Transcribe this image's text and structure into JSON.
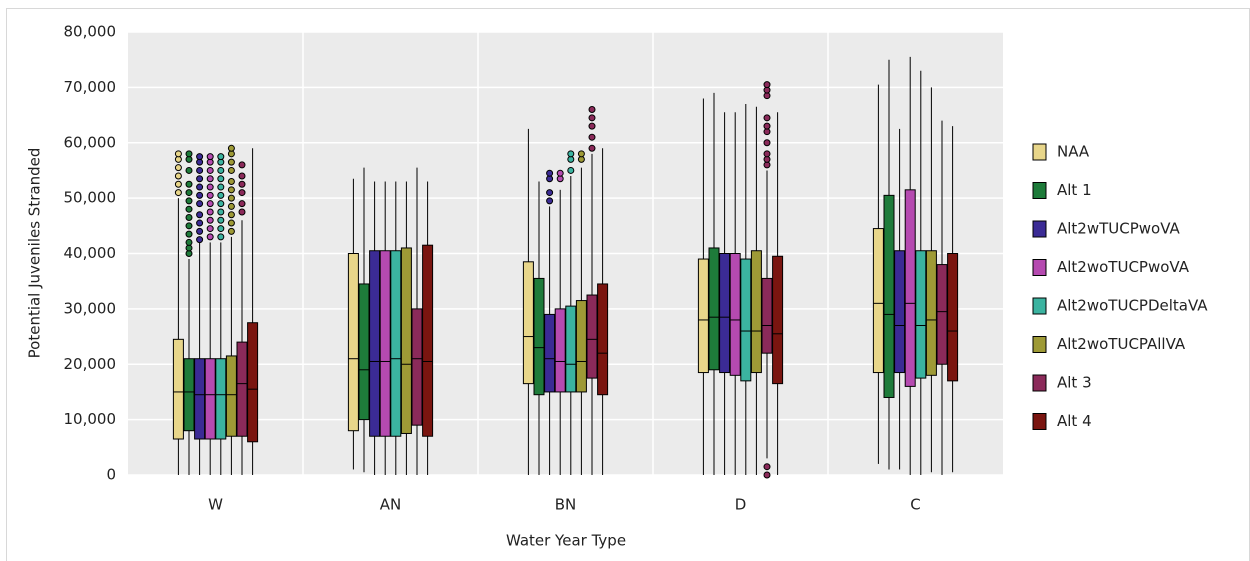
{
  "chart_data": {
    "type": "box",
    "x_label": "Water Year Type",
    "y_label": "Potential Juveniles Stranded",
    "categories": [
      "W",
      "AN",
      "BN",
      "D",
      "C"
    ],
    "ylim": [
      0,
      80000
    ],
    "yticks": [
      0,
      {
        "value": 10000,
        "label": "10,000"
      },
      {
        "value": 20000,
        "label": "20,000"
      },
      {
        "value": 30000,
        "label": "30,000"
      },
      {
        "value": 40000,
        "label": "40,000"
      },
      {
        "value": 50000,
        "label": "50,000"
      },
      {
        "value": 60000,
        "label": "60,000"
      },
      {
        "value": 70000,
        "label": "70,000"
      },
      {
        "value": 80000,
        "label": "80,000"
      }
    ],
    "grid": true,
    "legend": "right",
    "series": [
      {
        "name": "NAA",
        "color": "#e8d68a",
        "values": [
          {
            "min": 0,
            "q1": 6500,
            "median": 15000,
            "q3": 24500,
            "max": 50000,
            "outliers": [
              51000,
              52500,
              54000,
              55500,
              57000,
              58000
            ]
          },
          {
            "min": 1000,
            "q1": 8000,
            "median": 21000,
            "q3": 40000,
            "max": 53500,
            "outliers": []
          },
          {
            "min": 0,
            "q1": 16500,
            "median": 25000,
            "q3": 38500,
            "max": 62500,
            "outliers": []
          },
          {
            "min": 0,
            "q1": 18500,
            "median": 28000,
            "q3": 39000,
            "max": 68000,
            "outliers": []
          },
          {
            "min": 2000,
            "q1": 18500,
            "median": 31000,
            "q3": 44500,
            "max": 70500,
            "outliers": []
          }
        ]
      },
      {
        "name": "Alt 1",
        "color": "#1e7b3a",
        "values": [
          {
            "min": 0,
            "q1": 8000,
            "median": 15000,
            "q3": 21000,
            "max": 39000,
            "outliers": [
              40000,
              41000,
              42000,
              43500,
              45000,
              46500,
              48000,
              49500,
              51000,
              52500,
              55000,
              57000,
              58000
            ]
          },
          {
            "min": 500,
            "q1": 10000,
            "median": 19000,
            "q3": 34500,
            "max": 55500,
            "outliers": []
          },
          {
            "min": 0,
            "q1": 14500,
            "median": 23000,
            "q3": 35500,
            "max": 53000,
            "outliers": []
          },
          {
            "min": 0,
            "q1": 19000,
            "median": 28500,
            "q3": 41000,
            "max": 69000,
            "outliers": []
          },
          {
            "min": 1000,
            "q1": 14000,
            "median": 29000,
            "q3": 50500,
            "max": 75000,
            "outliers": []
          }
        ]
      },
      {
        "name": "Alt2wTUCPwoVA",
        "color": "#3b2b95",
        "values": [
          {
            "min": 0,
            "q1": 6500,
            "median": 14500,
            "q3": 21000,
            "max": 42000,
            "outliers": [
              42500,
              44000,
              45500,
              47000,
              49000,
              50500,
              52000,
              53500,
              55000,
              56500,
              57500
            ]
          },
          {
            "min": 0,
            "q1": 7000,
            "median": 20500,
            "q3": 40500,
            "max": 53000,
            "outliers": []
          },
          {
            "min": 0,
            "q1": 15000,
            "median": 21000,
            "q3": 29000,
            "max": 48500,
            "outliers": [
              49500,
              51000,
              53500,
              54500
            ]
          },
          {
            "min": 0,
            "q1": 18500,
            "median": 28500,
            "q3": 40000,
            "max": 65500,
            "outliers": []
          },
          {
            "min": 1000,
            "q1": 18500,
            "median": 27000,
            "q3": 40500,
            "max": 62500,
            "outliers": []
          }
        ]
      },
      {
        "name": "Alt2woTUCPwoVA",
        "color": "#b54ab0",
        "values": [
          {
            "min": 0,
            "q1": 6500,
            "median": 14500,
            "q3": 21000,
            "max": 42000,
            "outliers": [
              43000,
              44500,
              46000,
              47500,
              49000,
              50500,
              52000,
              53500,
              55000,
              56500,
              57500
            ]
          },
          {
            "min": 0,
            "q1": 7000,
            "median": 20500,
            "q3": 40500,
            "max": 53000,
            "outliers": []
          },
          {
            "min": 0,
            "q1": 15000,
            "median": 20500,
            "q3": 30000,
            "max": 51500,
            "outliers": [
              53500,
              54500
            ]
          },
          {
            "min": 0,
            "q1": 18000,
            "median": 28000,
            "q3": 40000,
            "max": 65500,
            "outliers": []
          },
          {
            "min": 0,
            "q1": 16000,
            "median": 31000,
            "q3": 51500,
            "max": 75500,
            "outliers": []
          }
        ]
      },
      {
        "name": "Alt2woTUCPDeltaVA",
        "color": "#3bb3a0",
        "values": [
          {
            "min": 0,
            "q1": 6500,
            "median": 14500,
            "q3": 21000,
            "max": 42000,
            "outliers": [
              43000,
              44500,
              46000,
              47500,
              49000,
              50500,
              52000,
              53500,
              55000,
              56500,
              57500
            ]
          },
          {
            "min": 0,
            "q1": 7000,
            "median": 21000,
            "q3": 40500,
            "max": 53000,
            "outliers": []
          },
          {
            "min": 0,
            "q1": 15000,
            "median": 20000,
            "q3": 30500,
            "max": 54000,
            "outliers": [
              55000,
              57000,
              58000
            ]
          },
          {
            "min": 0,
            "q1": 17000,
            "median": 26000,
            "q3": 39000,
            "max": 67000,
            "outliers": []
          },
          {
            "min": 0,
            "q1": 17500,
            "median": 27000,
            "q3": 40500,
            "max": 73000,
            "outliers": []
          }
        ]
      },
      {
        "name": "Alt2woTUCPAllVA",
        "color": "#9e9a36",
        "values": [
          {
            "min": 0,
            "q1": 7000,
            "median": 14500,
            "q3": 21500,
            "max": 43000,
            "outliers": [
              44000,
              45500,
              47000,
              48500,
              50000,
              51500,
              53000,
              55000,
              56500,
              58000,
              59000
            ]
          },
          {
            "min": 0,
            "q1": 7500,
            "median": 20000,
            "q3": 41000,
            "max": 53000,
            "outliers": []
          },
          {
            "min": 0,
            "q1": 15000,
            "median": 20500,
            "q3": 31500,
            "max": 55500,
            "outliers": [
              57000,
              58000
            ]
          },
          {
            "min": 0,
            "q1": 18500,
            "median": 26000,
            "q3": 40500,
            "max": 66500,
            "outliers": []
          },
          {
            "min": 500,
            "q1": 18000,
            "median": 28000,
            "q3": 40500,
            "max": 70000,
            "outliers": []
          }
        ]
      },
      {
        "name": "Alt 3",
        "color": "#8b2a5a",
        "values": [
          {
            "min": 0,
            "q1": 7000,
            "median": 16500,
            "q3": 24000,
            "max": 46000,
            "outliers": [
              47500,
              49000,
              51000,
              52500,
              54000,
              56000
            ]
          },
          {
            "min": 0,
            "q1": 9000,
            "median": 21000,
            "q3": 30000,
            "max": 55500,
            "outliers": []
          },
          {
            "min": 0,
            "q1": 17500,
            "median": 24500,
            "q3": 32500,
            "max": 58000,
            "outliers": [
              59000,
              61000,
              63000,
              64500,
              66000
            ]
          },
          {
            "min": 3000,
            "q1": 22000,
            "median": 27000,
            "q3": 35500,
            "max": 55000,
            "outliers": [
              0,
              1500,
              56000,
              57000,
              58000,
              60000,
              62000,
              63000,
              64500,
              68500,
              69500,
              70500
            ]
          },
          {
            "min": 0,
            "q1": 20000,
            "median": 29500,
            "q3": 38000,
            "max": 64000,
            "outliers": []
          }
        ]
      },
      {
        "name": "Alt 4",
        "color": "#7a1510",
        "values": [
          {
            "min": 0,
            "q1": 6000,
            "median": 15500,
            "q3": 27500,
            "max": 59000,
            "outliers": []
          },
          {
            "min": 0,
            "q1": 7000,
            "median": 20500,
            "q3": 41500,
            "max": 53000,
            "outliers": []
          },
          {
            "min": 0,
            "q1": 14500,
            "median": 22000,
            "q3": 34500,
            "max": 59000,
            "outliers": []
          },
          {
            "min": 0,
            "q1": 16500,
            "median": 25500,
            "q3": 39500,
            "max": 65500,
            "outliers": []
          },
          {
            "min": 500,
            "q1": 17000,
            "median": 26000,
            "q3": 40000,
            "max": 63000,
            "outliers": []
          }
        ]
      }
    ]
  }
}
